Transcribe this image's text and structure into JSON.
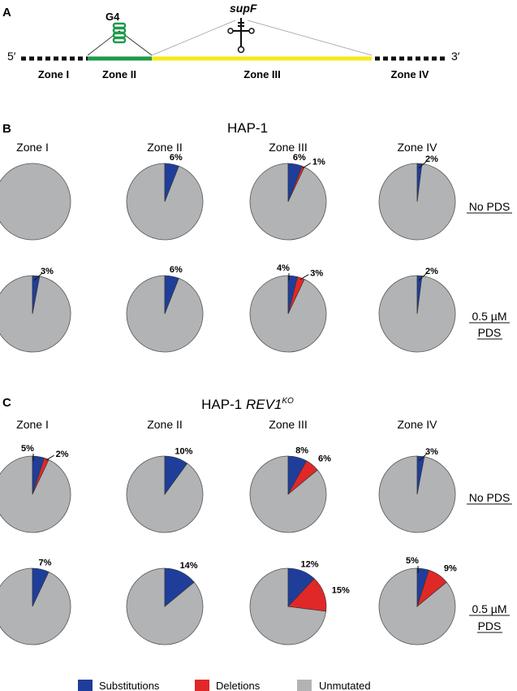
{
  "panels": {
    "a": {
      "letter": "A",
      "prime_5": "5′",
      "prime_3": "3′",
      "g4_label": "G4",
      "supf_label": "supF",
      "zones": [
        "Zone I",
        "Zone II",
        "Zone III",
        "Zone IV"
      ],
      "colors": {
        "zone1": "#111111",
        "zone2": "#1e9a4a",
        "zone3": "#f5ea1a",
        "zone4": "#111111"
      }
    },
    "b": {
      "letter": "B",
      "title": "HAP-1",
      "title_italic": "",
      "title_sup": "",
      "columns": [
        "Zone I",
        "Zone II",
        "Zone III",
        "Zone IV"
      ],
      "conditions": [
        {
          "lines": [
            "No PDS"
          ]
        },
        {
          "lines": [
            "0.5 µM",
            "PDS"
          ]
        }
      ]
    },
    "c": {
      "letter": "C",
      "title": "HAP-1 ",
      "title_italic": "REV1",
      "title_sup": "KO",
      "columns": [
        "Zone I",
        "Zone II",
        "Zone III",
        "Zone IV"
      ],
      "conditions": [
        {
          "lines": [
            "No PDS"
          ]
        },
        {
          "lines": [
            "0.5 µM",
            "PDS"
          ]
        }
      ]
    }
  },
  "legend": [
    {
      "label": "Substitutions",
      "color": "#1f3e9a"
    },
    {
      "label": "Deletions",
      "color": "#e02828"
    },
    {
      "label": "Unmutated",
      "color": "#b2b3b5"
    }
  ],
  "chart_data": [
    {
      "type": "pie",
      "title": "HAP-1",
      "series_order": [
        "Substitutions",
        "Deletions",
        "Unmutated"
      ],
      "columns": [
        "Zone I",
        "Zone II",
        "Zone III",
        "Zone IV"
      ],
      "rows": [
        "No PDS",
        "0.5 µM PDS"
      ],
      "values": [
        [
          {
            "sub": 0,
            "del": 0,
            "sub_label": "",
            "del_label": ""
          },
          {
            "sub": 6,
            "del": 0,
            "sub_label": "6%",
            "del_label": ""
          },
          {
            "sub": 6,
            "del": 1,
            "sub_label": "6%",
            "del_label": "1%"
          },
          {
            "sub": 2,
            "del": 0,
            "sub_label": "2%",
            "del_label": ""
          }
        ],
        [
          {
            "sub": 3,
            "del": 0,
            "sub_label": "3%",
            "del_label": ""
          },
          {
            "sub": 6,
            "del": 0,
            "sub_label": "6%",
            "del_label": ""
          },
          {
            "sub": 4,
            "del": 3,
            "sub_label": "4%",
            "del_label": "3%"
          },
          {
            "sub": 2,
            "del": 0,
            "sub_label": "2%",
            "del_label": ""
          }
        ]
      ]
    },
    {
      "type": "pie",
      "title": "HAP-1 REV1KO",
      "series_order": [
        "Substitutions",
        "Deletions",
        "Unmutated"
      ],
      "columns": [
        "Zone I",
        "Zone II",
        "Zone III",
        "Zone IV"
      ],
      "rows": [
        "No PDS",
        "0.5 µM PDS"
      ],
      "values": [
        [
          {
            "sub": 5,
            "del": 2,
            "sub_label": "5%",
            "del_label": "2%"
          },
          {
            "sub": 10,
            "del": 0,
            "sub_label": "10%",
            "del_label": ""
          },
          {
            "sub": 8,
            "del": 6,
            "sub_label": "8%",
            "del_label": "6%"
          },
          {
            "sub": 3,
            "del": 0,
            "sub_label": "3%",
            "del_label": ""
          }
        ],
        [
          {
            "sub": 7,
            "del": 0,
            "sub_label": "7%",
            "del_label": ""
          },
          {
            "sub": 14,
            "del": 0,
            "sub_label": "14%",
            "del_label": ""
          },
          {
            "sub": 12,
            "del": 15,
            "sub_label": "12%",
            "del_label": "15%"
          },
          {
            "sub": 5,
            "del": 9,
            "sub_label": "5%",
            "del_label": "9%"
          }
        ]
      ]
    }
  ]
}
